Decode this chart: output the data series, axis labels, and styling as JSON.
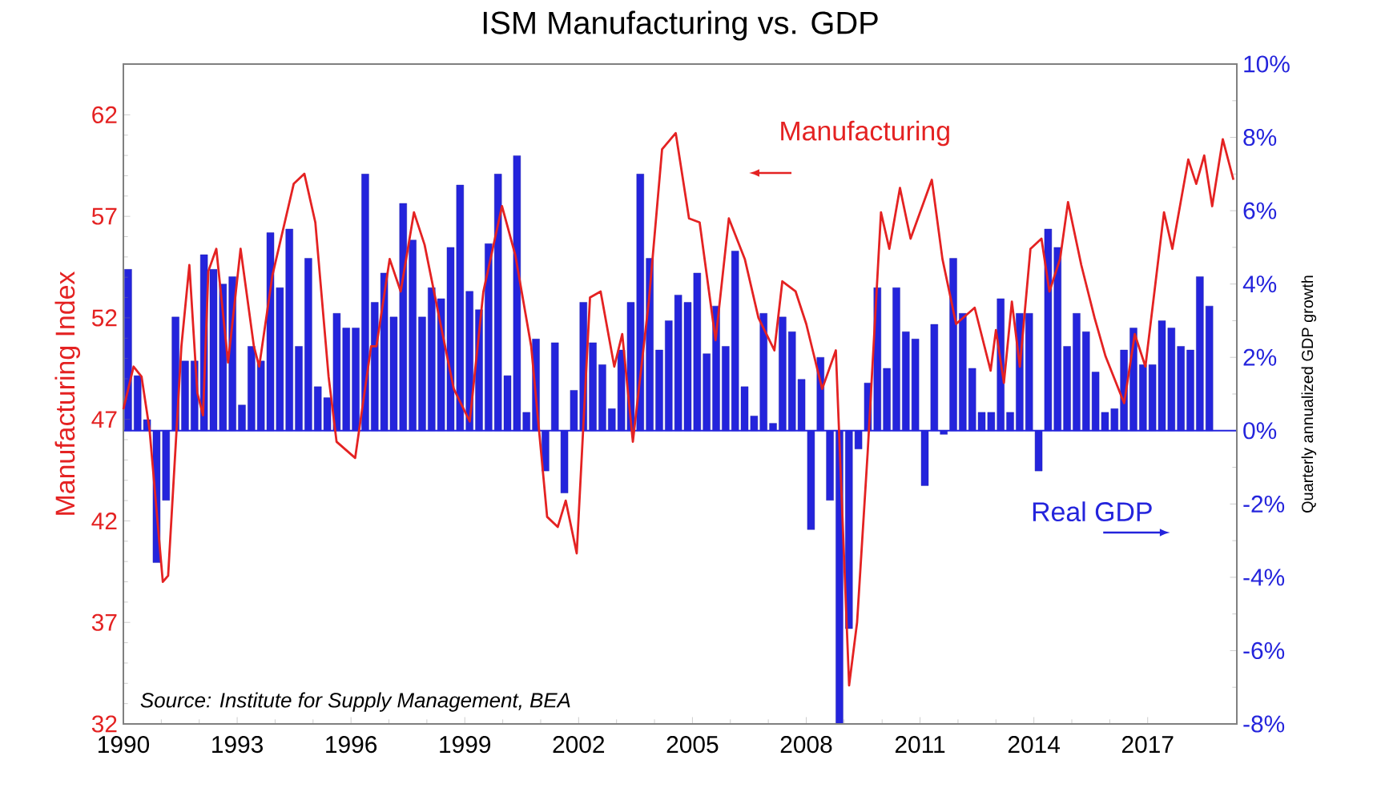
{
  "chart_data": {
    "type": "bar",
    "title": "ISM Manufacturing vs. GDP",
    "ylabel": "Manufacturing Index",
    "y2label": "Quarterly annualized GDP growth",
    "x": [
      1990.125,
      1990.375,
      1990.625,
      1990.875,
      1991.125,
      1991.375,
      1991.625,
      1991.875,
      1992.125,
      1992.375,
      1992.625,
      1992.875,
      1993.125,
      1993.375,
      1993.625,
      1993.875,
      1994.125,
      1994.375,
      1994.625,
      1994.875,
      1995.125,
      1995.375,
      1995.625,
      1995.875,
      1996.125,
      1996.375,
      1996.625,
      1996.875,
      1997.125,
      1997.375,
      1997.625,
      1997.875,
      1998.125,
      1998.375,
      1998.625,
      1998.875,
      1999.125,
      1999.375,
      1999.625,
      1999.875,
      2000.125,
      2000.375,
      2000.625,
      2000.875,
      2001.125,
      2001.375,
      2001.625,
      2001.875,
      2002.125,
      2002.375,
      2002.625,
      2002.875,
      2003.125,
      2003.375,
      2003.625,
      2003.875,
      2004.125,
      2004.375,
      2004.625,
      2004.875,
      2005.125,
      2005.375,
      2005.625,
      2005.875,
      2006.125,
      2006.375,
      2006.625,
      2006.875,
      2007.125,
      2007.375,
      2007.625,
      2007.875,
      2008.125,
      2008.375,
      2008.625,
      2008.875,
      2009.125,
      2009.375,
      2009.625,
      2009.875,
      2010.125,
      2010.375,
      2010.625,
      2010.875,
      2011.125,
      2011.375,
      2011.625,
      2011.875,
      2012.125,
      2012.375,
      2012.625,
      2012.875,
      2013.125,
      2013.375,
      2013.625,
      2013.875,
      2014.125,
      2014.375,
      2014.625,
      2014.875,
      2015.125,
      2015.375,
      2015.625,
      2015.875,
      2016.125,
      2016.375,
      2016.625,
      2016.875,
      2017.125,
      2017.375,
      2017.625,
      2017.875,
      2018.125,
      2018.375,
      2018.625
    ],
    "xlim": [
      1990,
      2019.35
    ],
    "xticks": [
      1990,
      1993,
      1996,
      1999,
      2002,
      2005,
      2008,
      2011,
      2014,
      2017
    ],
    "ylim": [
      32,
      64.5
    ],
    "yticks": [
      32,
      37,
      42,
      47,
      52,
      57,
      62
    ],
    "y2lim": [
      -8,
      10
    ],
    "y2ticks": [
      {
        "value": -8,
        "label": "-8%"
      },
      {
        "value": -6,
        "label": "-6%"
      },
      {
        "value": -4,
        "label": "-4%"
      },
      {
        "value": -2,
        "label": "-2%"
      },
      {
        "value": 0,
        "label": "0%"
      },
      {
        "value": 2,
        "label": "2%"
      },
      {
        "value": 4,
        "label": "4%"
      },
      {
        "value": 6,
        "label": "6%"
      },
      {
        "value": 8,
        "label": "8%"
      },
      {
        "value": 10,
        "label": "10%"
      }
    ],
    "series": [
      {
        "name": "Real GDP",
        "axis": "y2",
        "color": "#2424dc",
        "values": [
          4.4,
          1.5,
          0.3,
          -3.6,
          -1.9,
          3.1,
          1.9,
          1.9,
          4.8,
          4.4,
          4.0,
          4.2,
          0.7,
          2.3,
          1.9,
          5.4,
          3.9,
          5.5,
          2.3,
          4.7,
          1.2,
          0.9,
          3.2,
          2.8,
          2.8,
          7.0,
          3.5,
          4.3,
          3.1,
          6.2,
          5.2,
          3.1,
          3.9,
          3.6,
          5.0,
          6.7,
          3.8,
          3.3,
          5.1,
          7.0,
          1.5,
          7.5,
          0.5,
          2.5,
          -1.1,
          2.4,
          -1.7,
          1.1,
          3.5,
          2.4,
          1.8,
          0.6,
          2.2,
          3.5,
          7.0,
          4.7,
          2.2,
          3.0,
          3.7,
          3.5,
          4.3,
          2.1,
          3.4,
          2.3,
          4.9,
          1.2,
          0.4,
          3.2,
          0.2,
          3.1,
          2.7,
          1.4,
          -2.7,
          2.0,
          -1.9,
          -8.0,
          -5.4,
          -0.5,
          1.3,
          3.9,
          1.7,
          3.9,
          2.7,
          2.5,
          -1.5,
          2.9,
          -0.1,
          4.7,
          3.2,
          1.7,
          0.5,
          0.5,
          3.6,
          0.5,
          3.2,
          3.2,
          -1.1,
          5.5,
          5.0,
          2.3,
          3.2,
          2.7,
          1.6,
          0.5,
          0.6,
          2.2,
          2.8,
          1.8,
          1.8,
          3.0,
          2.8,
          2.3,
          2.2,
          4.2,
          3.4
        ]
      },
      {
        "name": "Manufacturing",
        "type": "line",
        "color": "#e42222",
        "x": [
          1990.0,
          1990.27,
          1990.48,
          1990.69,
          1991.04,
          1991.18,
          1991.53,
          1991.74,
          1991.95,
          1992.1,
          1992.24,
          1992.45,
          1992.76,
          1993.09,
          1993.44,
          1993.58,
          1993.93,
          1994.49,
          1994.77,
          1995.06,
          1995.41,
          1995.62,
          1996.11,
          1996.53,
          1996.67,
          1997.02,
          1997.31,
          1997.66,
          1997.94,
          1998.36,
          1998.71,
          1999.13,
          1999.49,
          1999.98,
          2000.33,
          2000.75,
          2001.17,
          2001.45,
          2001.66,
          2001.95,
          2002.3,
          2002.58,
          2002.94,
          2003.15,
          2003.43,
          2003.85,
          2004.2,
          2004.56,
          2004.91,
          2005.19,
          2005.61,
          2005.96,
          2006.38,
          2006.74,
          2007.16,
          2007.37,
          2007.72,
          2008.0,
          2008.42,
          2008.78,
          2009.13,
          2009.34,
          2009.62,
          2009.97,
          2010.19,
          2010.47,
          2010.75,
          2011.31,
          2011.59,
          2011.95,
          2012.44,
          2012.86,
          2013.0,
          2013.21,
          2013.42,
          2013.63,
          2013.91,
          2014.2,
          2014.41,
          2014.69,
          2014.9,
          2015.25,
          2015.6,
          2015.89,
          2016.38,
          2016.66,
          2016.94,
          2017.43,
          2017.65,
          2018.07,
          2018.28,
          2018.49,
          2018.7,
          2018.98,
          2019.26
        ],
        "values": [
          47.5,
          49.6,
          49.1,
          46.5,
          39.0,
          39.3,
          50.6,
          54.6,
          48.3,
          47.2,
          54.3,
          55.4,
          49.8,
          55.4,
          50.6,
          49.6,
          54.1,
          58.6,
          59.1,
          56.7,
          49.1,
          45.9,
          45.1,
          50.6,
          50.6,
          54.9,
          53.3,
          57.2,
          55.6,
          51.7,
          48.5,
          46.9,
          53.3,
          57.5,
          55.1,
          50.6,
          42.2,
          41.7,
          43.0,
          40.4,
          53.0,
          53.3,
          49.6,
          51.2,
          45.9,
          52.8,
          60.3,
          61.1,
          56.9,
          56.7,
          50.9,
          56.9,
          54.9,
          52.0,
          50.4,
          53.8,
          53.3,
          51.7,
          48.5,
          50.4,
          33.9,
          37.0,
          45.4,
          57.2,
          55.4,
          58.4,
          55.9,
          58.8,
          54.9,
          51.7,
          52.5,
          49.4,
          51.4,
          48.8,
          52.8,
          49.6,
          55.4,
          55.9,
          53.3,
          54.9,
          57.7,
          54.6,
          52.0,
          50.1,
          47.8,
          51.2,
          49.6,
          57.2,
          55.4,
          59.8,
          58.6,
          60.0,
          57.5,
          60.8,
          58.8
        ]
      }
    ],
    "ref_lines": [
      {
        "axis": "y2",
        "value": 0,
        "color": "#2424dc"
      }
    ],
    "annotations": [
      "*Source:  Institute for Supply Management, BEA*"
    ]
  }
}
